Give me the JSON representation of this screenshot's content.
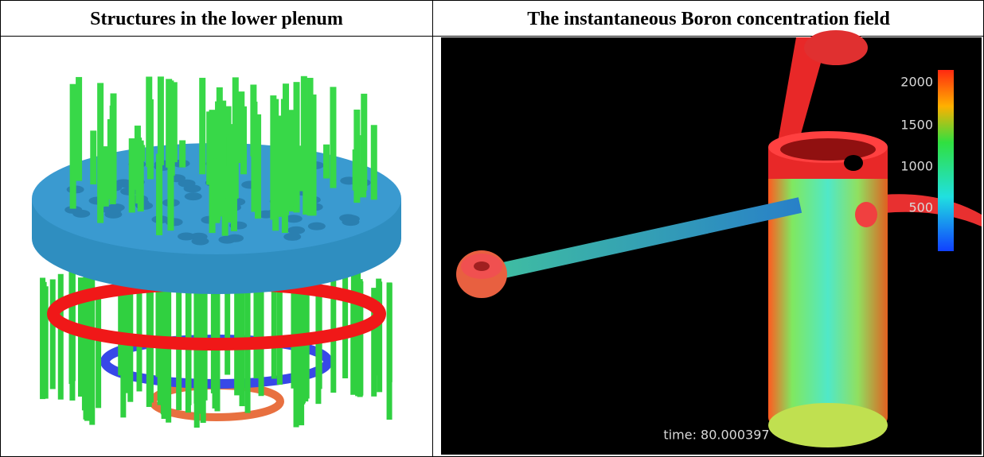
{
  "table": {
    "headers": [
      "Structures in the lower plenum",
      "The instantaneous Boron concentration field"
    ],
    "colorbar_labels": [
      "2000",
      "1500",
      "1000",
      "500"
    ],
    "time_label": "time: 80.000397"
  }
}
